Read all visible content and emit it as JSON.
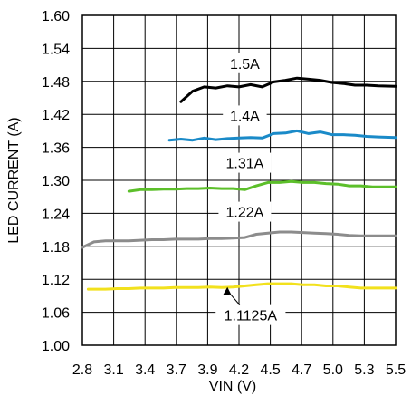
{
  "chart_data": {
    "type": "line",
    "xlabel": "VIN (V)",
    "ylabel": "LED CURRENT (A)",
    "xlim": [
      2.8,
      5.5
    ],
    "ylim": [
      1.0,
      1.6
    ],
    "xticks": [
      "2.8",
      "3.1",
      "3.4",
      "3.7",
      "3.9",
      "4.2",
      "4.5",
      "4.7",
      "5.0",
      "5.3",
      "5.5"
    ],
    "yticks": [
      "1.00",
      "1.06",
      "1.12",
      "1.18",
      "1.24",
      "1.30",
      "1.36",
      "1.42",
      "1.48",
      "1.54",
      "1.60"
    ],
    "grid": true,
    "series": [
      {
        "name": "1.5A",
        "color": "#000000",
        "x": [
          3.65,
          3.75,
          3.85,
          3.95,
          4.05,
          4.15,
          4.25,
          4.35,
          4.45,
          4.55,
          4.65,
          4.75,
          4.85,
          4.95,
          5.05,
          5.15,
          5.25,
          5.35,
          5.5
        ],
        "y": [
          1.443,
          1.462,
          1.47,
          1.468,
          1.472,
          1.47,
          1.474,
          1.47,
          1.479,
          1.482,
          1.486,
          1.484,
          1.482,
          1.478,
          1.476,
          1.473,
          1.473,
          1.472,
          1.471
        ]
      },
      {
        "name": "1.4A",
        "color": "#1a8ac8",
        "x": [
          3.55,
          3.65,
          3.75,
          3.85,
          3.95,
          4.05,
          4.15,
          4.25,
          4.35,
          4.45,
          4.55,
          4.65,
          4.75,
          4.85,
          4.95,
          5.05,
          5.15,
          5.25,
          5.35,
          5.5
        ],
        "y": [
          1.373,
          1.375,
          1.373,
          1.377,
          1.374,
          1.376,
          1.377,
          1.378,
          1.377,
          1.385,
          1.386,
          1.39,
          1.385,
          1.388,
          1.383,
          1.383,
          1.382,
          1.38,
          1.379,
          1.378
        ]
      },
      {
        "name": "1.31A",
        "color": "#5cbf2a",
        "x": [
          3.2,
          3.3,
          3.4,
          3.5,
          3.6,
          3.7,
          3.8,
          3.9,
          4.0,
          4.1,
          4.2,
          4.3,
          4.4,
          4.5,
          4.6,
          4.7,
          4.8,
          4.9,
          5.0,
          5.1,
          5.2,
          5.3,
          5.4,
          5.5
        ],
        "y": [
          1.28,
          1.283,
          1.283,
          1.284,
          1.284,
          1.285,
          1.285,
          1.286,
          1.285,
          1.285,
          1.283,
          1.29,
          1.296,
          1.296,
          1.298,
          1.296,
          1.296,
          1.294,
          1.293,
          1.29,
          1.29,
          1.288,
          1.288,
          1.288
        ]
      },
      {
        "name": "1.22A",
        "color": "#8c8c8c",
        "x": [
          2.8,
          2.9,
          3.0,
          3.1,
          3.2,
          3.3,
          3.4,
          3.5,
          3.6,
          3.7,
          3.8,
          3.9,
          4.0,
          4.1,
          4.2,
          4.3,
          4.4,
          4.5,
          4.6,
          4.7,
          4.8,
          4.9,
          5.0,
          5.1,
          5.2,
          5.3,
          5.4,
          5.5
        ],
        "y": [
          1.178,
          1.188,
          1.19,
          1.19,
          1.19,
          1.191,
          1.192,
          1.192,
          1.193,
          1.193,
          1.193,
          1.194,
          1.194,
          1.195,
          1.196,
          1.202,
          1.204,
          1.206,
          1.206,
          1.205,
          1.204,
          1.203,
          1.202,
          1.2,
          1.199,
          1.199,
          1.199,
          1.199
        ]
      },
      {
        "name": "1.1125A",
        "color": "#f2e11d",
        "x": [
          2.85,
          3.0,
          3.1,
          3.2,
          3.3,
          3.4,
          3.5,
          3.6,
          3.7,
          3.8,
          3.9,
          4.0,
          4.1,
          4.2,
          4.3,
          4.4,
          4.5,
          4.6,
          4.7,
          4.8,
          4.9,
          5.0,
          5.1,
          5.2,
          5.3,
          5.4,
          5.5
        ],
        "y": [
          1.102,
          1.102,
          1.103,
          1.103,
          1.104,
          1.104,
          1.104,
          1.105,
          1.105,
          1.105,
          1.106,
          1.105,
          1.106,
          1.108,
          1.11,
          1.112,
          1.112,
          1.112,
          1.11,
          1.11,
          1.108,
          1.108,
          1.106,
          1.104,
          1.104,
          1.104,
          1.104
        ]
      }
    ],
    "annotations": [
      {
        "text": "1.5A",
        "x": 4.2,
        "y": 1.513
      },
      {
        "text": "1.4A",
        "x": 4.2,
        "y": 1.418
      },
      {
        "text": "1.31A",
        "x": 4.2,
        "y": 1.332
      },
      {
        "text": "1.22A",
        "x": 4.2,
        "y": 1.243
      },
      {
        "text": "1.1125A",
        "x": 4.25,
        "y": 1.055,
        "arrow_to": {
          "x": 4.05,
          "y": 1.106
        }
      }
    ]
  }
}
